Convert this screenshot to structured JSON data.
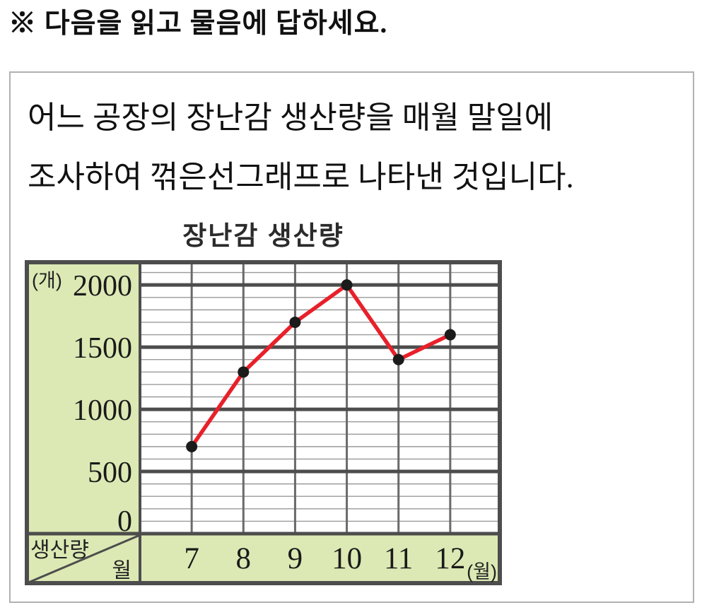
{
  "page": {
    "instruction": "※ 다음을 읽고 물음에 답하세요.",
    "problem_text_line1": "어느 공장의 장난감 생산량을 매월 말일에",
    "problem_text_line2": "조사하여 꺾은선그래프로 나타낸 것입니다."
  },
  "chart_data": {
    "type": "line",
    "title": "장난감 생산량",
    "series_name": "생산량",
    "categories": [
      "7",
      "8",
      "9",
      "10",
      "11",
      "12"
    ],
    "values": [
      700,
      1300,
      1700,
      2000,
      1400,
      1600
    ],
    "xlabel": "월",
    "ylabel": "생산량",
    "y_unit_label": "(개)",
    "x_unit_label": "(월)",
    "corner_row_label": "생산량",
    "corner_col_label": "월",
    "ylim": [
      0,
      2200
    ],
    "y_major_ticks": [
      0,
      500,
      1000,
      1500,
      2000
    ],
    "y_minor_step": 100,
    "grid": true,
    "legend": "none",
    "colors": {
      "line": "#e8202a",
      "point": "#1b1b1b",
      "panel_green": "#dce9b4",
      "border_dark": "#4d4d4d",
      "grid_minor": "#9a9a9a",
      "grid_vertical": "#6a6a6a",
      "tick_text": "#1a1a1a"
    }
  }
}
